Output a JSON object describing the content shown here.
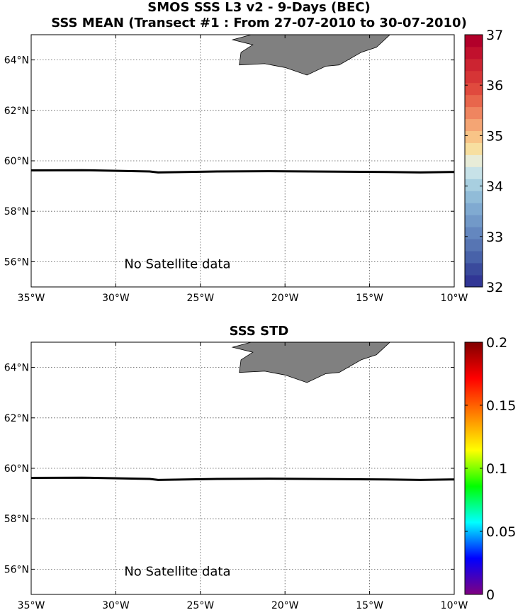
{
  "titles": {
    "line1": "SMOS SSS L3 v2 - 9-Days (BEC)",
    "line2": "SSS MEAN (Transect #1 : From 27-07-2010 to 30-07-2010)",
    "std": "SSS STD"
  },
  "chart_data": [
    {
      "type": "map",
      "title": "SSS MEAN (Transect #1 : From 27-07-2010 to 30-07-2010)",
      "xlim": [
        -35,
        -10
      ],
      "ylim": [
        55,
        65
      ],
      "xticks": [
        -35,
        -30,
        -25,
        -20,
        -15,
        -10
      ],
      "xtick_labels": [
        "35°W",
        "30°W",
        "25°W",
        "20°W",
        "15°W",
        "10°W"
      ],
      "yticks": [
        56,
        58,
        60,
        62,
        64
      ],
      "ytick_labels": [
        "56°N",
        "58°N",
        "60°N",
        "62°N",
        "64°N"
      ],
      "grid": true,
      "land": {
        "color": "#808080",
        "lonlat": [
          [
            -22.6,
            64.3
          ],
          [
            -21.9,
            64.6
          ],
          [
            -23.1,
            64.8
          ],
          [
            -22.0,
            65
          ],
          [
            -13.8,
            65
          ],
          [
            -14.6,
            64.5
          ],
          [
            -15.5,
            64.3
          ],
          [
            -16.8,
            63.8
          ],
          [
            -17.6,
            63.75
          ],
          [
            -18.7,
            63.4
          ],
          [
            -20.0,
            63.7
          ],
          [
            -21.2,
            63.85
          ],
          [
            -22.7,
            63.8
          ]
        ]
      },
      "transect": {
        "lon": [
          -35,
          -32,
          -28,
          -27.5,
          -24,
          -21,
          -17,
          -14,
          -12,
          -10
        ],
        "lat": [
          59.62,
          59.63,
          59.58,
          59.54,
          59.58,
          59.59,
          59.57,
          59.56,
          59.54,
          59.56
        ]
      },
      "annotation": "No Satellite data",
      "colorbar": {
        "min": 32,
        "max": 37,
        "ticks": [
          32,
          33,
          34,
          35,
          36,
          37
        ],
        "levels": [
          "#313695",
          "#3a4a9c",
          "#4862a9",
          "#5775b3",
          "#6487bf",
          "#7299c8",
          "#80aad1",
          "#91bcd8",
          "#a8cfe0",
          "#c7e2e8",
          "#e8ecd8",
          "#f7dfa0",
          "#f8c487",
          "#f4a574",
          "#ef8560",
          "#e8664c",
          "#e04a3e",
          "#d63536",
          "#cc2431",
          "#c1112d",
          "#b2002a"
        ]
      }
    },
    {
      "type": "map",
      "title": "SSS STD",
      "xlim": [
        -35,
        -10
      ],
      "ylim": [
        55,
        65
      ],
      "xticks": [
        -35,
        -30,
        -25,
        -20,
        -15,
        -10
      ],
      "xtick_labels": [
        "35°W",
        "30°W",
        "25°W",
        "20°W",
        "15°W",
        "10°W"
      ],
      "yticks": [
        56,
        58,
        60,
        62,
        64
      ],
      "ytick_labels": [
        "56°N",
        "58°N",
        "60°N",
        "62°N",
        "64°N"
      ],
      "grid": true,
      "land": {
        "color": "#808080",
        "lonlat": [
          [
            -22.6,
            64.3
          ],
          [
            -21.9,
            64.6
          ],
          [
            -23.1,
            64.8
          ],
          [
            -22.0,
            65
          ],
          [
            -13.8,
            65
          ],
          [
            -14.6,
            64.5
          ],
          [
            -15.5,
            64.3
          ],
          [
            -16.8,
            63.8
          ],
          [
            -17.6,
            63.75
          ],
          [
            -18.7,
            63.4
          ],
          [
            -20.0,
            63.7
          ],
          [
            -21.2,
            63.85
          ],
          [
            -22.7,
            63.8
          ]
        ]
      },
      "transect": {
        "lon": [
          -35,
          -32,
          -28,
          -27.5,
          -24,
          -21,
          -17,
          -14,
          -12,
          -10
        ],
        "lat": [
          59.62,
          59.63,
          59.58,
          59.54,
          59.58,
          59.59,
          59.57,
          59.56,
          59.54,
          59.56
        ]
      },
      "annotation": "No Satellite data",
      "colorbar": {
        "min": 0,
        "max": 0.2,
        "ticks": [
          0,
          0.05,
          0.1,
          0.15,
          0.2
        ],
        "tick_labels": [
          "0",
          "0.05",
          "0.1",
          "0.15",
          "0.2"
        ],
        "gradient": [
          "#800080",
          "#0000ff",
          "#00ffff",
          "#00ff00",
          "#ffff00",
          "#ff8000",
          "#ff0000",
          "#800000"
        ]
      }
    }
  ]
}
